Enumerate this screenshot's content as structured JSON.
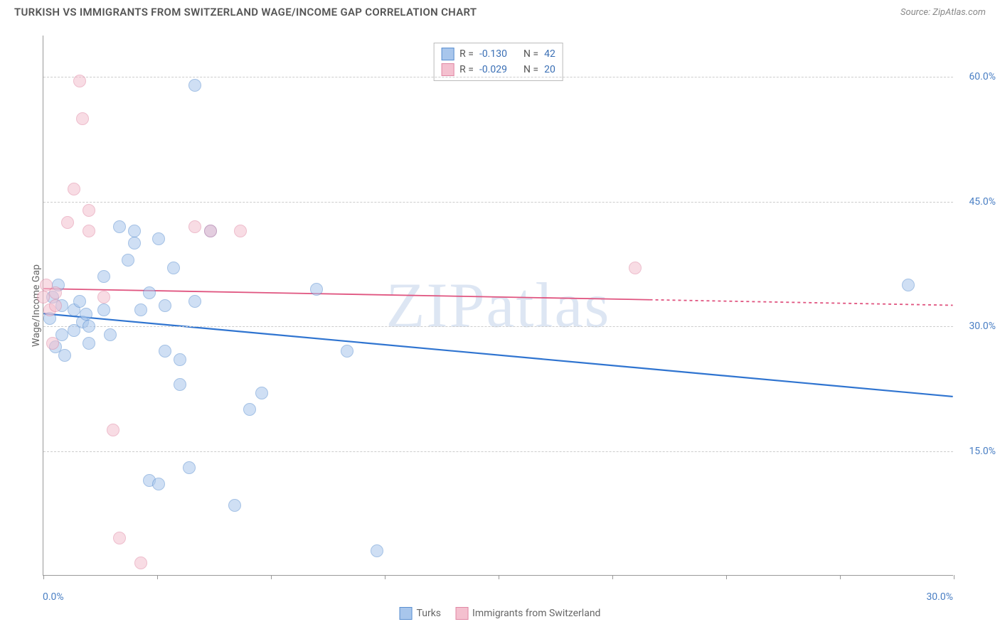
{
  "header": {
    "title": "TURKISH VS IMMIGRANTS FROM SWITZERLAND WAGE/INCOME GAP CORRELATION CHART",
    "source": "Source: ZipAtlas.com"
  },
  "chart": {
    "type": "scatter",
    "ylabel": "Wage/Income Gap",
    "watermark": "ZIPatlas",
    "xlim": [
      0,
      30
    ],
    "ylim": [
      0,
      65
    ],
    "xticks_major": [
      0,
      7.5,
      15,
      22.5,
      30
    ],
    "xticks_minor": [
      3.75,
      11.25,
      18.75,
      26.25
    ],
    "xaxis_labels": {
      "left": "0.0%",
      "right": "30.0%"
    },
    "yticks": [
      {
        "v": 15,
        "label": "15.0%"
      },
      {
        "v": 30,
        "label": "30.0%"
      },
      {
        "v": 45,
        "label": "45.0%"
      },
      {
        "v": 60,
        "label": "60.0%"
      }
    ],
    "background_color": "#ffffff",
    "grid_color": "#cccccc",
    "point_radius": 9,
    "point_border_width": 1.2,
    "point_opacity": 0.55,
    "series": [
      {
        "name": "Turks",
        "color_fill": "#a8c6ec",
        "color_border": "#5a8fd0",
        "trend_color": "#2f74d0",
        "trend_width": 2.2,
        "trend": {
          "x1": 0,
          "y1": 31.5,
          "x2": 30,
          "y2": 21.5,
          "dash_after_x": null
        },
        "points": [
          [
            0.2,
            31.0
          ],
          [
            0.3,
            33.5
          ],
          [
            0.4,
            27.5
          ],
          [
            0.5,
            35.0
          ],
          [
            0.6,
            29.0
          ],
          [
            0.6,
            32.5
          ],
          [
            0.7,
            26.5
          ],
          [
            1.0,
            32.0
          ],
          [
            1.0,
            29.5
          ],
          [
            1.2,
            33.0
          ],
          [
            1.3,
            30.5
          ],
          [
            1.4,
            31.5
          ],
          [
            1.5,
            28.0
          ],
          [
            1.5,
            30.0
          ],
          [
            2.0,
            36.0
          ],
          [
            2.0,
            32.0
          ],
          [
            2.2,
            29.0
          ],
          [
            2.5,
            42.0
          ],
          [
            2.8,
            38.0
          ],
          [
            3.0,
            41.5
          ],
          [
            3.0,
            40.0
          ],
          [
            3.2,
            32.0
          ],
          [
            3.5,
            11.5
          ],
          [
            3.5,
            34.0
          ],
          [
            3.8,
            11.0
          ],
          [
            3.8,
            40.5
          ],
          [
            4.0,
            32.5
          ],
          [
            4.0,
            27.0
          ],
          [
            4.3,
            37.0
          ],
          [
            4.5,
            26.0
          ],
          [
            4.5,
            23.0
          ],
          [
            4.8,
            13.0
          ],
          [
            5.0,
            59.0
          ],
          [
            5.0,
            33.0
          ],
          [
            5.5,
            41.5
          ],
          [
            6.3,
            8.5
          ],
          [
            6.8,
            20.0
          ],
          [
            7.2,
            22.0
          ],
          [
            9.0,
            34.5
          ],
          [
            10.0,
            27.0
          ],
          [
            11.0,
            3.0
          ],
          [
            28.5,
            35.0
          ]
        ]
      },
      {
        "name": "Immigrants from Switzerland",
        "color_fill": "#f4c0cf",
        "color_border": "#e088a4",
        "trend_color": "#e05580",
        "trend_width": 1.8,
        "trend": {
          "x1": 0,
          "y1": 34.5,
          "x2": 30,
          "y2": 32.5,
          "dash_after_x": 20
        },
        "points": [
          [
            0.0,
            33.5
          ],
          [
            0.1,
            35.0
          ],
          [
            0.2,
            32.0
          ],
          [
            0.3,
            28.0
          ],
          [
            0.4,
            34.0
          ],
          [
            0.4,
            32.5
          ],
          [
            0.8,
            42.5
          ],
          [
            1.0,
            46.5
          ],
          [
            1.2,
            59.5
          ],
          [
            1.3,
            55.0
          ],
          [
            1.5,
            41.5
          ],
          [
            1.5,
            44.0
          ],
          [
            2.0,
            33.5
          ],
          [
            2.3,
            17.5
          ],
          [
            2.5,
            4.5
          ],
          [
            3.2,
            1.5
          ],
          [
            5.0,
            42.0
          ],
          [
            5.5,
            41.5
          ],
          [
            6.5,
            41.5
          ],
          [
            19.5,
            37.0
          ]
        ]
      }
    ],
    "stats": [
      {
        "swatch_fill": "#a8c6ec",
        "swatch_border": "#5a8fd0",
        "R_label": "R =",
        "R": "-0.130",
        "N_label": "N =",
        "N": "42"
      },
      {
        "swatch_fill": "#f4c0cf",
        "swatch_border": "#e088a4",
        "R_label": "R =",
        "R": "-0.029",
        "N_label": "N =",
        "N": "20"
      }
    ],
    "legend": [
      {
        "swatch_fill": "#a8c6ec",
        "swatch_border": "#5a8fd0",
        "label": "Turks"
      },
      {
        "swatch_fill": "#f4c0cf",
        "swatch_border": "#e088a4",
        "label": "Immigrants from Switzerland"
      }
    ]
  }
}
